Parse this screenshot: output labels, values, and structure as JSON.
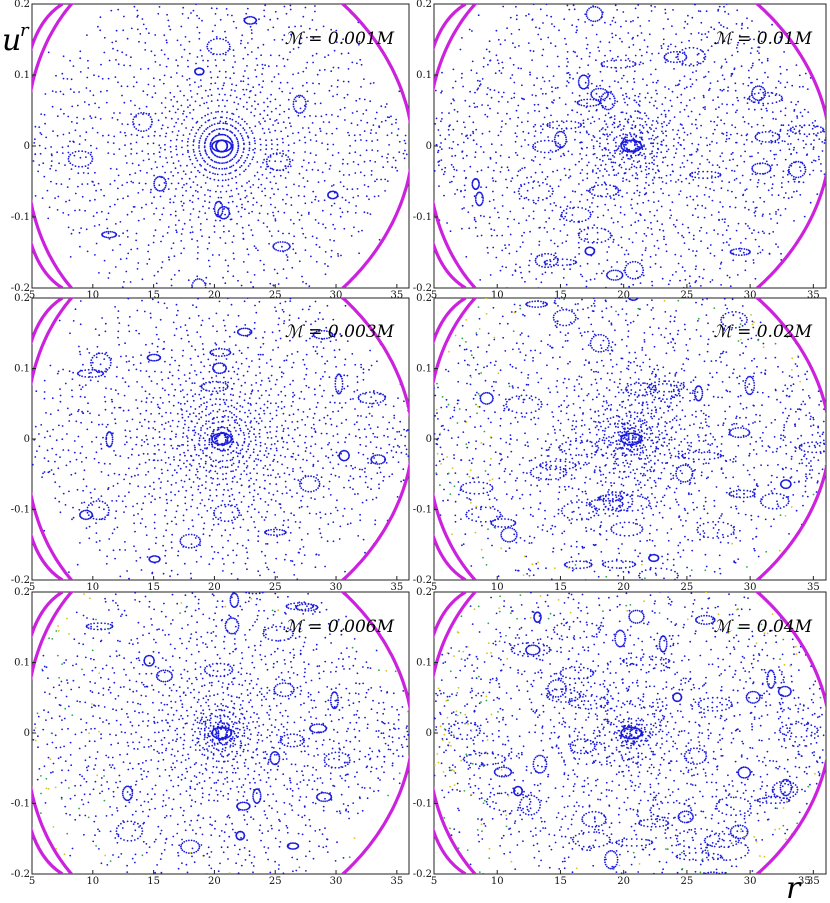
{
  "figure": {
    "ylabel": "u",
    "ylabel_sup": "r",
    "xlabel": "r",
    "xlabel_sup": "35"
  },
  "chart_data": [
    {
      "type": "scatter",
      "title": "ℳ = 0.001M",
      "xlim": [
        5,
        36
      ],
      "ylim": [
        -0.2,
        0.2
      ],
      "x_ticks": [
        "5",
        "10",
        "15",
        "20",
        "25",
        "30",
        "35"
      ],
      "y_ticks": [
        "0.2",
        "0.1",
        "0",
        "-0.1",
        "-0.2"
      ],
      "center": [
        20.6,
        0
      ],
      "curve_color": "#cc22dd",
      "point_color": "#1a1adc"
    },
    {
      "type": "scatter",
      "title": "ℳ = 0.01M",
      "xlim": [
        5,
        36
      ],
      "ylim": [
        -0.2,
        0.2
      ],
      "x_ticks": [
        "5",
        "10",
        "15",
        "20",
        "25",
        "30",
        "35"
      ],
      "y_ticks": [
        "0.2",
        "0.1",
        "0",
        "-0.1",
        "-0.2"
      ],
      "center": [
        20.6,
        0
      ],
      "curve_color": "#cc22dd",
      "point_color": "#1a1adc"
    },
    {
      "type": "scatter",
      "title": "ℳ = 0.003M",
      "xlim": [
        5,
        36
      ],
      "ylim": [
        -0.2,
        0.2
      ],
      "x_ticks": [
        "5",
        "10",
        "15",
        "20",
        "25",
        "30",
        "35"
      ],
      "y_ticks": [
        "0.2",
        "0.1",
        "0",
        "-0.1",
        "-0.2"
      ],
      "center": [
        20.6,
        0
      ],
      "curve_color": "#cc22dd",
      "point_color": "#1a1adc"
    },
    {
      "type": "scatter",
      "title": "ℳ = 0.02M",
      "xlim": [
        5,
        36
      ],
      "ylim": [
        -0.2,
        0.2
      ],
      "x_ticks": [
        "5",
        "10",
        "15",
        "20",
        "25",
        "30",
        "35"
      ],
      "y_ticks": [
        "0.2",
        "0.1",
        "0",
        "-0.1",
        "-0.2"
      ],
      "center": [
        20.6,
        0
      ],
      "curve_color": "#cc22dd",
      "point_color": "#1a1adc"
    },
    {
      "type": "scatter",
      "title": "ℳ = 0.006M",
      "xlim": [
        5,
        36
      ],
      "ylim": [
        -0.2,
        0.2
      ],
      "x_ticks": [
        "5",
        "10",
        "15",
        "20",
        "25",
        "30",
        "35"
      ],
      "y_ticks": [
        "0.2",
        "0.1",
        "0",
        "-0.1",
        "-0.2"
      ],
      "center": [
        20.6,
        0
      ],
      "curve_color": "#cc22dd",
      "point_color": "#1a1adc"
    },
    {
      "type": "scatter",
      "title": "ℳ = 0.04M",
      "xlim": [
        5,
        36
      ],
      "ylim": [
        -0.2,
        0.2
      ],
      "x_ticks": [
        "5",
        "10",
        "15",
        "20",
        "25",
        "30",
        "35"
      ],
      "y_ticks": [
        "0.2",
        "0.1",
        "0",
        "-0.1",
        "-0.2"
      ],
      "center": [
        20.6,
        0
      ],
      "curve_color": "#cc22dd",
      "point_color": "#1a1adc"
    }
  ]
}
